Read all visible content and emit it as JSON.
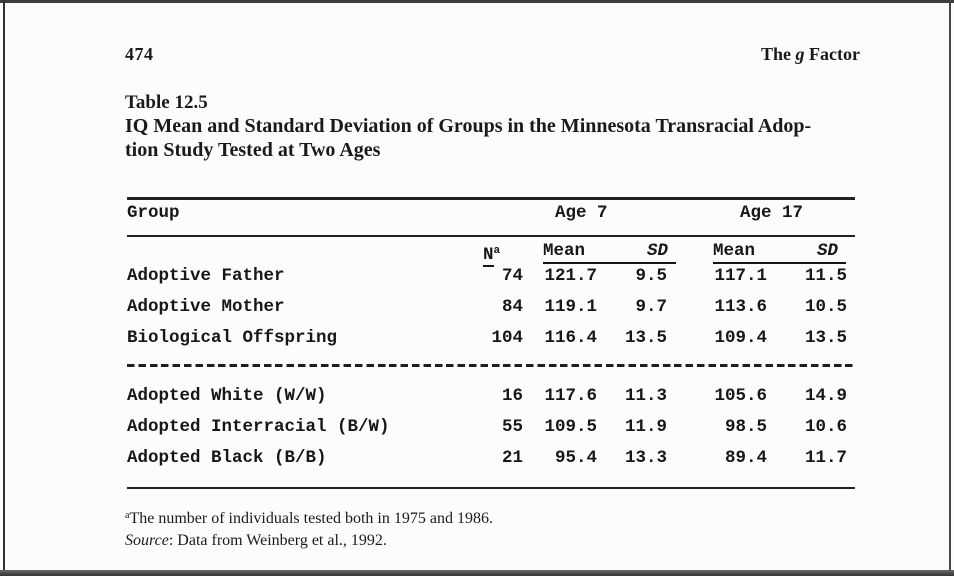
{
  "page": {
    "page_number": "474",
    "running_header_pre": "The ",
    "running_header_g": "g",
    "running_header_post": " Factor",
    "table_label": "Table 12.5",
    "table_caption_line1": "IQ Mean and Standard Deviation of Groups in the Minnesota Transracial Adop-",
    "table_caption_line2": "tion Study Tested at Two Ages",
    "footnote_marker": "a",
    "footnote_text": "The number of individuals tested both in 1975 and 1986.",
    "source_label": "Source",
    "source_rest": ": Data from Weinberg et al., 1992."
  },
  "table": {
    "group_header": "Group",
    "age7_header": "Age 7",
    "age17_header": "Age 17",
    "n_header": "N",
    "n_sup": "a",
    "mean7_header": "Mean",
    "sd7_header": "SD",
    "mean17_header": "Mean",
    "sd17_header": "SD",
    "rows_top": [
      {
        "group": "Adoptive Father",
        "n": "74",
        "mean7": "121.7",
        "sd7": "9.5",
        "mean17": "117.1",
        "sd17": "11.5"
      },
      {
        "group": "Adoptive Mother",
        "n": "84",
        "mean7": "119.1",
        "sd7": "9.7",
        "mean17": "113.6",
        "sd17": "10.5"
      },
      {
        "group": "Biological Offspring",
        "n": "104",
        "mean7": "116.4",
        "sd7": "13.5",
        "mean17": "109.4",
        "sd17": "13.5"
      }
    ],
    "rows_bottom": [
      {
        "group": "Adopted White (W/W)",
        "n": "16",
        "mean7": "117.6",
        "sd7": "11.3",
        "mean17": "105.6",
        "sd17": "14.9"
      },
      {
        "group": "Adopted Interracial (B/W)",
        "n": "55",
        "mean7": "109.5",
        "sd7": "11.9",
        "mean17": "98.5",
        "sd17": "10.6"
      },
      {
        "group": "Adopted Black (B/B)",
        "n": "21",
        "mean7": "95.4",
        "sd7": "13.3",
        "mean17": "89.4",
        "sd17": "11.7"
      }
    ]
  }
}
